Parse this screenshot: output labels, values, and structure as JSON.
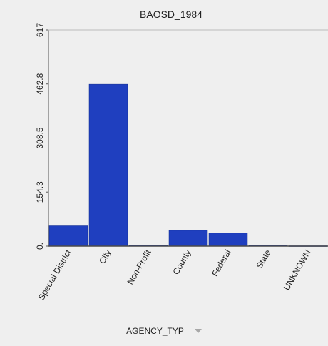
{
  "chart_data": {
    "type": "bar",
    "title": "BAOSD_1984",
    "categories": [
      "Special District",
      "City",
      "Non-Profit",
      "County",
      "Federal",
      "State",
      "UNKNOWN"
    ],
    "values": [
      58,
      462,
      2,
      45,
      37,
      2,
      1
    ],
    "ylim": [
      0,
      617
    ],
    "yticks": [
      0,
      154.3,
      308.5,
      462.8,
      617
    ],
    "ytick_labels": [
      "0.",
      "154.3",
      "308.5",
      "462.8",
      "617"
    ],
    "xlabel": "AGENCY_TYP",
    "ylabel": "",
    "grid": false,
    "bar_color": "#1f3fbf"
  },
  "controls": {
    "field_dropdown_icon": "chevron-down-icon"
  }
}
